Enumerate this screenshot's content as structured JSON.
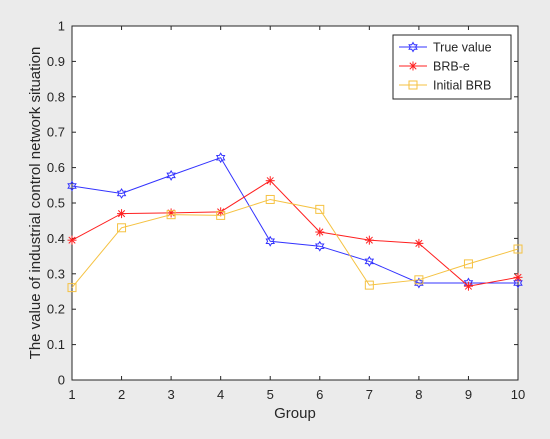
{
  "chart_data": {
    "type": "line",
    "title": "",
    "xlabel": "Group",
    "ylabel": "The value of industrial control network situation",
    "x": [
      1,
      2,
      3,
      4,
      5,
      6,
      7,
      8,
      9,
      10
    ],
    "xlim": [
      1,
      10
    ],
    "ylim": [
      0,
      1
    ],
    "xticks": [
      1,
      2,
      3,
      4,
      5,
      6,
      7,
      8,
      9,
      10
    ],
    "yticks": [
      0,
      0.1,
      0.2,
      0.3,
      0.4,
      0.5,
      0.6,
      0.7,
      0.8,
      0.9,
      1
    ],
    "ytick_labels": [
      "0",
      "0.1",
      "0.2",
      "0.3",
      "0.4",
      "0.5",
      "0.6",
      "0.7",
      "0.8",
      "0.9",
      "1"
    ],
    "grid": false,
    "legend_position": "top-right",
    "series": [
      {
        "name": "True value",
        "color": "#3333ff",
        "marker": "hexagram",
        "values": [
          0.548,
          0.527,
          0.578,
          0.628,
          0.392,
          0.378,
          0.335,
          0.274,
          0.274,
          0.274
        ]
      },
      {
        "name": "BRB-e",
        "color": "#ff2020",
        "marker": "asterisk",
        "values": [
          0.395,
          0.47,
          0.472,
          0.475,
          0.563,
          0.418,
          0.395,
          0.386,
          0.265,
          0.29
        ]
      },
      {
        "name": "Initial BRB",
        "color": "#f5c242",
        "marker": "square",
        "values": [
          0.261,
          0.43,
          0.467,
          0.465,
          0.51,
          0.482,
          0.268,
          0.283,
          0.328,
          0.37
        ]
      }
    ]
  }
}
